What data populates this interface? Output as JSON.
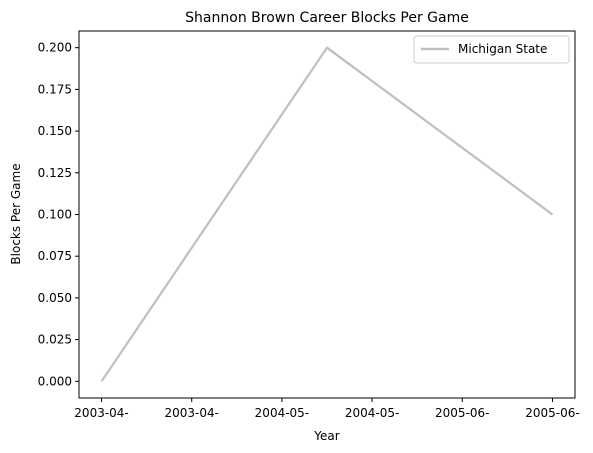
{
  "chart_data": {
    "type": "line",
    "title": "Shannon Brown Career Blocks Per Game",
    "xlabel": "Year",
    "ylabel": "Blocks Per Game",
    "x_tick_labels": [
      "2003-04-",
      "2003-04-",
      "2004-05-",
      "2004-05-",
      "2005-06-",
      "2005-06-"
    ],
    "y_ticks": [
      0.0,
      0.025,
      0.05,
      0.075,
      0.1,
      0.125,
      0.15,
      0.175,
      0.2
    ],
    "y_tick_labels": [
      "0.000",
      "0.025",
      "0.050",
      "0.075",
      "0.100",
      "0.125",
      "0.150",
      "0.175",
      "0.200"
    ],
    "ylim": [
      -0.01,
      0.21
    ],
    "xlim": [
      -0.1,
      2.1
    ],
    "x_tick_positions": [
      0,
      0.4,
      0.8,
      1.2,
      1.6,
      2.0
    ],
    "grid": false,
    "legend_position": "top-right",
    "series": [
      {
        "name": "Michigan State",
        "color": "#bfbfbf",
        "x": [
          0,
          1,
          2
        ],
        "values": [
          0.0,
          0.2,
          0.1
        ]
      }
    ]
  }
}
